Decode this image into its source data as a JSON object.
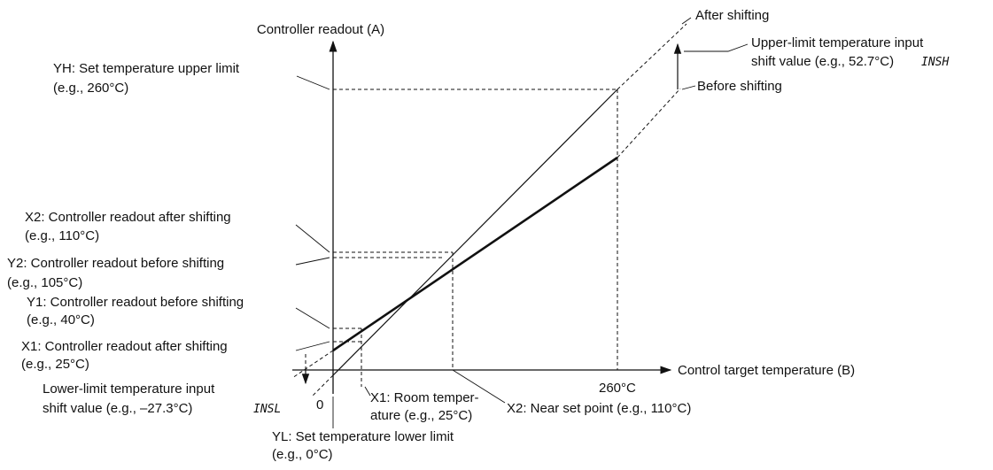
{
  "axes": {
    "y_label": "Controller readout (A)",
    "x_label": "Control target temperature (B)",
    "origin": "0",
    "x_tick": "260°C"
  },
  "lines": {
    "after": "After shifting",
    "before": "Before shifting"
  },
  "annotations": {
    "upper_shift": [
      "Upper-limit temperature input",
      "shift value (e.g., 52.7°C)",
      "INSH"
    ],
    "yh": [
      "YH: Set temperature upper limit",
      "(e.g., 260°C)"
    ],
    "x2_readout": [
      "X2: Controller readout after shifting",
      "(e.g., 110°C)"
    ],
    "y2_readout": [
      "Y2: Controller readout before shifting",
      "(e.g., 105°C)"
    ],
    "y1_readout": [
      "Y1: Controller readout before shifting",
      "(e.g., 40°C)"
    ],
    "x1_readout": [
      "X1: Controller readout after shifting",
      "(e.g., 25°C)"
    ],
    "lower_shift": [
      "Lower-limit temperature input",
      "shift value (e.g., –27.3°C)",
      "INSL"
    ],
    "x1_room": [
      "X1: Room temper-",
      "ature (e.g., 25°C)"
    ],
    "x2_near": "X2: Near set point (e.g., 110°C)",
    "yl": [
      "YL: Set temperature lower limit",
      "(e.g., 0°C)"
    ]
  }
}
